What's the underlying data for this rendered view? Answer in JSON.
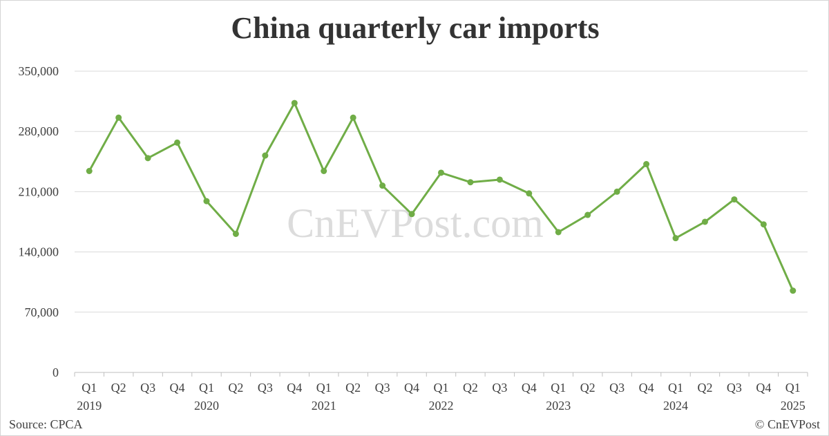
{
  "chart_data": {
    "type": "line",
    "title": "China quarterly car imports",
    "x": [
      {
        "quarter": "Q1",
        "year": "2019"
      },
      {
        "quarter": "Q2",
        "year": ""
      },
      {
        "quarter": "Q3",
        "year": ""
      },
      {
        "quarter": "Q4",
        "year": ""
      },
      {
        "quarter": "Q1",
        "year": "2020"
      },
      {
        "quarter": "Q2",
        "year": ""
      },
      {
        "quarter": "Q3",
        "year": ""
      },
      {
        "quarter": "Q4",
        "year": ""
      },
      {
        "quarter": "Q1",
        "year": "2021"
      },
      {
        "quarter": "Q2",
        "year": ""
      },
      {
        "quarter": "Q3",
        "year": ""
      },
      {
        "quarter": "Q4",
        "year": ""
      },
      {
        "quarter": "Q1",
        "year": "2022"
      },
      {
        "quarter": "Q2",
        "year": ""
      },
      {
        "quarter": "Q3",
        "year": ""
      },
      {
        "quarter": "Q4",
        "year": ""
      },
      {
        "quarter": "Q1",
        "year": "2023"
      },
      {
        "quarter": "Q2",
        "year": ""
      },
      {
        "quarter": "Q3",
        "year": ""
      },
      {
        "quarter": "Q4",
        "year": ""
      },
      {
        "quarter": "Q1",
        "year": "2024"
      },
      {
        "quarter": "Q2",
        "year": ""
      },
      {
        "quarter": "Q3",
        "year": ""
      },
      {
        "quarter": "Q4",
        "year": ""
      },
      {
        "quarter": "Q1",
        "year": "2025"
      }
    ],
    "series": [
      {
        "values": [
          234000,
          296000,
          249000,
          267000,
          199000,
          161000,
          252000,
          313000,
          234000,
          296000,
          217000,
          184000,
          232000,
          221000,
          224000,
          208000,
          163000,
          183000,
          210000,
          242000,
          156000,
          175000,
          201000,
          172000,
          95000
        ],
        "color": "#70ad47"
      }
    ],
    "yticks": [
      "0",
      "70,000",
      "140,000",
      "210,000",
      "280,000",
      "350,000"
    ],
    "ylim": [
      0,
      350000
    ],
    "grid": true,
    "legend": "none"
  },
  "footer": {
    "source": "Source: CPCA",
    "copyright": "© CnEVPost"
  },
  "watermark": "CnEVPost.com",
  "colors": {
    "series": "#70ad47",
    "grid": "#d9d9d9",
    "text": "#404040"
  }
}
